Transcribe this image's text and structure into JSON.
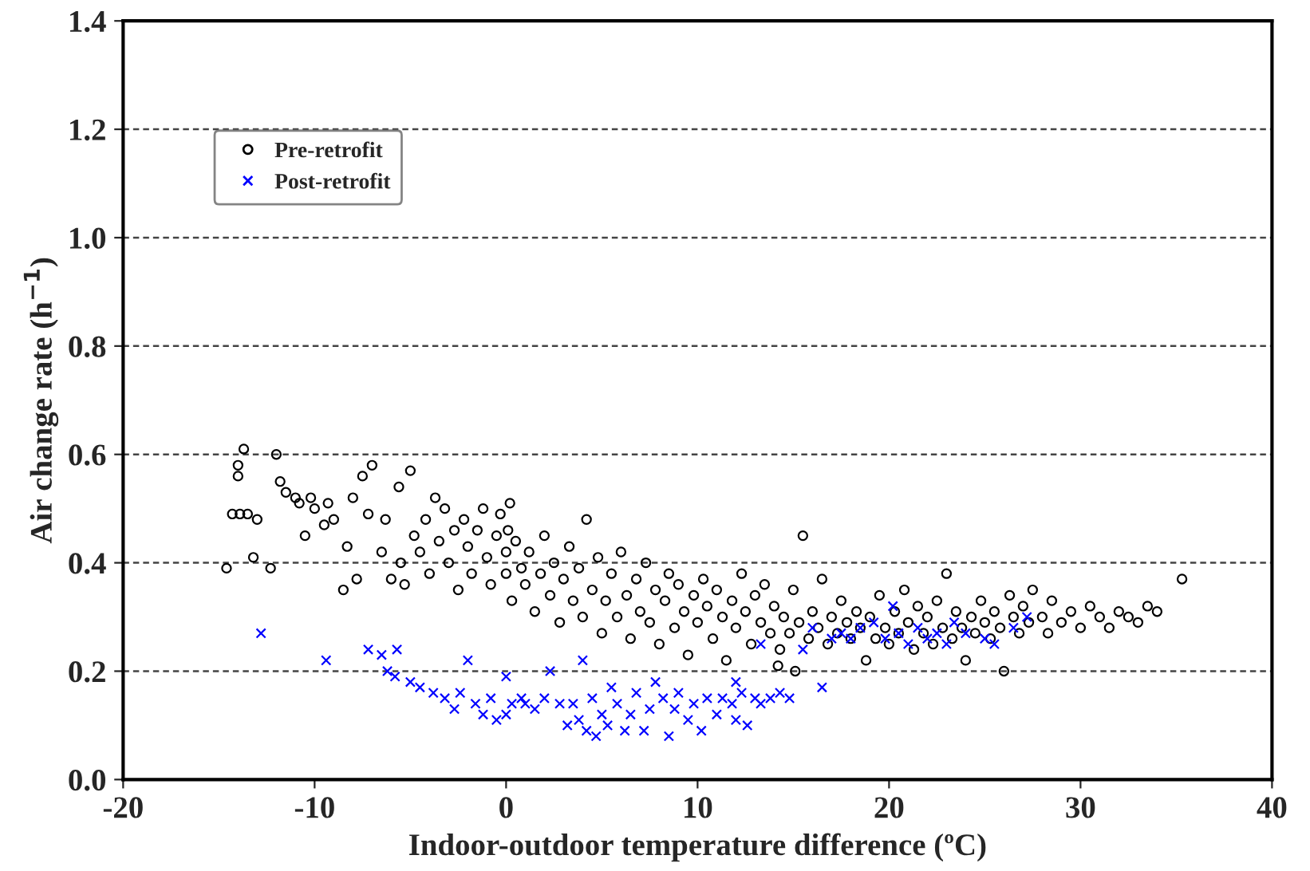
{
  "chart_data": {
    "type": "scatter",
    "xlabel": "Indoor-outdoor temperature difference (ºC)",
    "ylabel": "Air change rate (h$^{−1}$)",
    "xlim": [
      -20,
      40
    ],
    "xticks": [
      -20,
      -10,
      0,
      10,
      20,
      30,
      40
    ],
    "ylim": [
      0,
      1.4
    ],
    "yticks": [
      {
        "value": 0,
        "label": "0.0"
      },
      {
        "value": 0.2,
        "label": "0.2"
      },
      {
        "value": 0.4,
        "label": "0.4"
      },
      {
        "value": 0.6,
        "label": "0.6"
      },
      {
        "value": 0.8,
        "label": "0.8"
      },
      {
        "value": 1.0,
        "label": "1.0"
      },
      {
        "value": 1.2,
        "label": "1.2"
      },
      {
        "value": 1.4,
        "label": "1.4"
      }
    ],
    "grid": "y",
    "legend": "top left",
    "series": [
      {
        "name": "Pre-retrofit",
        "color": "#000000",
        "marker": "circle",
        "x": [
          -14.6,
          -14.3,
          -14.0,
          -14.0,
          -13.7,
          -13.9,
          -13.5,
          -13.2,
          -13.0,
          -12.0,
          -12.3,
          -11.8,
          -11.5,
          -11.0,
          -10.8,
          -10.5,
          -10.2,
          -10.0,
          -9.5,
          -9.3,
          -9.0,
          -8.5,
          -8.3,
          -8.0,
          -7.8,
          -7.5,
          -7.2,
          -7.0,
          -6.5,
          -6.3,
          -6.0,
          -5.6,
          -5.5,
          -5.3,
          -5.0,
          -4.8,
          -4.5,
          -4.2,
          -4.0,
          -3.7,
          -3.5,
          -3.2,
          -3.0,
          -2.7,
          -2.5,
          -2.2,
          -2.0,
          -1.8,
          -1.5,
          -1.2,
          -1.0,
          -0.8,
          -0.5,
          -0.3,
          0.0,
          0.0,
          0.1,
          0.2,
          0.3,
          0.5,
          0.8,
          1.0,
          1.2,
          1.5,
          1.8,
          2.0,
          2.3,
          2.5,
          2.8,
          3.0,
          3.3,
          3.5,
          3.8,
          4.0,
          4.2,
          4.5,
          4.8,
          5.0,
          5.2,
          5.5,
          5.8,
          6.0,
          6.3,
          6.5,
          6.8,
          7.0,
          7.3,
          7.5,
          7.8,
          8.0,
          8.3,
          8.5,
          8.8,
          9.0,
          9.3,
          9.5,
          9.8,
          10.0,
          10.3,
          10.5,
          10.8,
          11.0,
          11.3,
          11.5,
          11.8,
          12.0,
          12.3,
          12.5,
          12.8,
          13.0,
          13.3,
          13.5,
          13.8,
          14.0,
          14.3,
          14.5,
          14.8,
          15.0,
          15.3,
          15.5,
          15.8,
          16.0,
          16.3,
          16.5,
          16.8,
          17.0,
          17.3,
          17.5,
          17.8,
          18.0,
          18.3,
          18.5,
          18.8,
          19.0,
          19.3,
          19.5,
          19.8,
          20.0,
          20.3,
          20.5,
          20.8,
          21.0,
          21.3,
          21.5,
          21.8,
          22.0,
          22.3,
          22.5,
          22.8,
          23.0,
          23.3,
          23.5,
          23.8,
          24.0,
          24.3,
          24.5,
          24.8,
          25.0,
          25.3,
          25.5,
          25.8,
          26.0,
          26.3,
          26.5,
          26.8,
          27.0,
          27.3,
          27.5,
          28.0,
          28.3,
          28.5,
          29.0,
          29.5,
          30.0,
          30.5,
          31.0,
          31.5,
          32.0,
          32.5,
          33.0,
          33.5,
          34.0,
          35.3,
          15.1,
          14.2
        ],
        "values": [
          0.39,
          0.49,
          0.58,
          0.56,
          0.61,
          0.49,
          0.49,
          0.41,
          0.48,
          0.6,
          0.39,
          0.55,
          0.53,
          0.52,
          0.51,
          0.45,
          0.52,
          0.5,
          0.47,
          0.51,
          0.48,
          0.35,
          0.43,
          0.52,
          0.37,
          0.56,
          0.49,
          0.58,
          0.42,
          0.48,
          0.37,
          0.54,
          0.4,
          0.36,
          0.57,
          0.45,
          0.42,
          0.48,
          0.38,
          0.52,
          0.44,
          0.5,
          0.4,
          0.46,
          0.35,
          0.48,
          0.43,
          0.38,
          0.46,
          0.5,
          0.41,
          0.36,
          0.45,
          0.49,
          0.42,
          0.38,
          0.46,
          0.51,
          0.33,
          0.44,
          0.39,
          0.36,
          0.42,
          0.31,
          0.38,
          0.45,
          0.34,
          0.4,
          0.29,
          0.37,
          0.43,
          0.33,
          0.39,
          0.3,
          0.48,
          0.35,
          0.41,
          0.27,
          0.33,
          0.38,
          0.3,
          0.42,
          0.34,
          0.26,
          0.37,
          0.31,
          0.4,
          0.29,
          0.35,
          0.25,
          0.33,
          0.38,
          0.28,
          0.36,
          0.31,
          0.23,
          0.34,
          0.29,
          0.37,
          0.32,
          0.26,
          0.35,
          0.3,
          0.22,
          0.33,
          0.28,
          0.38,
          0.31,
          0.25,
          0.34,
          0.29,
          0.36,
          0.27,
          0.32,
          0.24,
          0.3,
          0.27,
          0.35,
          0.29,
          0.45,
          0.26,
          0.31,
          0.28,
          0.37,
          0.25,
          0.3,
          0.27,
          0.33,
          0.29,
          0.26,
          0.31,
          0.28,
          0.22,
          0.3,
          0.26,
          0.34,
          0.28,
          0.25,
          0.31,
          0.27,
          0.35,
          0.29,
          0.24,
          0.32,
          0.27,
          0.3,
          0.25,
          0.33,
          0.28,
          0.38,
          0.26,
          0.31,
          0.28,
          0.22,
          0.3,
          0.27,
          0.33,
          0.29,
          0.26,
          0.31,
          0.28,
          0.2,
          0.34,
          0.3,
          0.27,
          0.32,
          0.29,
          0.35,
          0.3,
          0.27,
          0.33,
          0.29,
          0.31,
          0.28,
          0.32,
          0.3,
          0.28,
          0.31,
          0.3,
          0.29,
          0.32,
          0.31,
          0.37,
          0.2,
          0.21
        ]
      },
      {
        "name": "Post-retrofit",
        "color": "#0000ff",
        "marker": "cross",
        "x": [
          -12.8,
          -9.4,
          -7.2,
          -6.5,
          -6.2,
          -5.8,
          -5.7,
          -5.0,
          -4.5,
          -3.8,
          -3.2,
          -2.7,
          -2.4,
          -2.0,
          -1.6,
          -1.2,
          -0.8,
          -0.5,
          0.0,
          0.0,
          0.3,
          0.8,
          1.0,
          1.5,
          2.0,
          2.3,
          2.8,
          3.2,
          3.5,
          3.8,
          4.0,
          4.2,
          4.5,
          4.7,
          5.0,
          5.3,
          5.5,
          5.8,
          6.2,
          6.5,
          6.8,
          7.2,
          7.5,
          7.8,
          8.2,
          8.5,
          8.8,
          9.0,
          9.5,
          9.8,
          10.2,
          10.5,
          11.0,
          11.3,
          11.8,
          12.0,
          12.3,
          12.6,
          13.0,
          13.3,
          13.8,
          14.3,
          14.8,
          15.5,
          16.0,
          16.5,
          17.0,
          17.5,
          18.0,
          18.5,
          19.2,
          19.8,
          20.2,
          20.5,
          21.0,
          21.5,
          22.0,
          22.5,
          23.0,
          23.4,
          24.0,
          25.0,
          25.5,
          26.5,
          27.2,
          13.3,
          12.0
        ],
        "values": [
          0.27,
          0.22,
          0.24,
          0.23,
          0.2,
          0.19,
          0.24,
          0.18,
          0.17,
          0.16,
          0.15,
          0.13,
          0.16,
          0.22,
          0.14,
          0.12,
          0.15,
          0.11,
          0.12,
          0.19,
          0.14,
          0.15,
          0.14,
          0.13,
          0.15,
          0.2,
          0.14,
          0.1,
          0.14,
          0.11,
          0.22,
          0.09,
          0.15,
          0.08,
          0.12,
          0.1,
          0.17,
          0.14,
          0.09,
          0.12,
          0.16,
          0.09,
          0.13,
          0.18,
          0.15,
          0.08,
          0.13,
          0.16,
          0.11,
          0.14,
          0.09,
          0.15,
          0.12,
          0.15,
          0.14,
          0.11,
          0.16,
          0.1,
          0.15,
          0.14,
          0.15,
          0.16,
          0.15,
          0.24,
          0.28,
          0.17,
          0.26,
          0.27,
          0.26,
          0.28,
          0.29,
          0.26,
          0.32,
          0.27,
          0.25,
          0.28,
          0.26,
          0.27,
          0.25,
          0.29,
          0.27,
          0.26,
          0.25,
          0.28,
          0.3,
          0.25,
          0.18
        ]
      }
    ]
  }
}
